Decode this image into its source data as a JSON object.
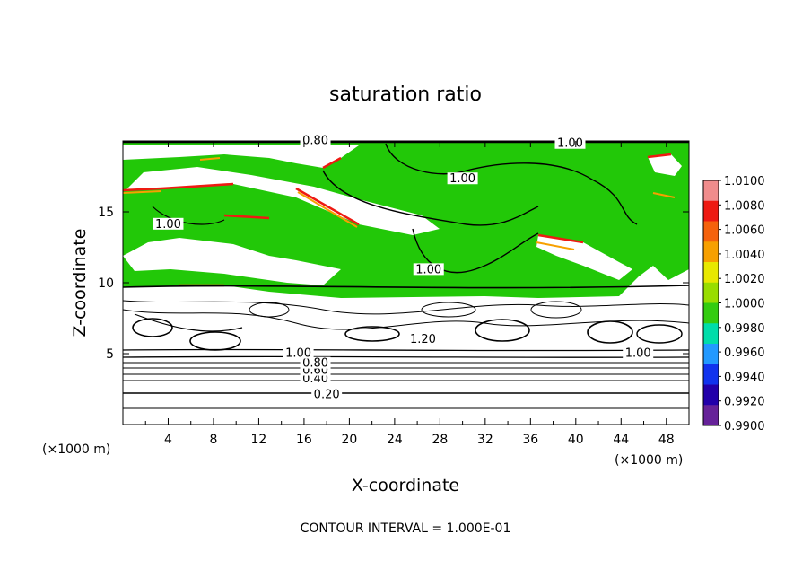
{
  "chart_data": {
    "type": "heatmap",
    "title": "saturation ratio",
    "xlabel": "X-coordinate",
    "ylabel": "Z-coordinate",
    "x_unit": "(×1000 m)",
    "z_unit": "(×1000 m)",
    "xlim": [
      0,
      50
    ],
    "ylim": [
      0,
      20
    ],
    "x_ticks": [
      4,
      8,
      12,
      16,
      20,
      24,
      28,
      32,
      36,
      40,
      44,
      48
    ],
    "y_ticks": [
      5,
      10,
      15
    ],
    "footer": "CONTOUR INTERVAL = 1.000E-01",
    "colorbar": {
      "levels": [
        "1.0100",
        "1.0080",
        "1.0060",
        "1.0040",
        "1.0020",
        "1.0000",
        "0.9980",
        "0.9960",
        "0.9940",
        "0.9920",
        "0.9900"
      ],
      "colors": [
        "#f08c8c",
        "#ee1a12",
        "#f5620c",
        "#f7a000",
        "#e8e800",
        "#99dd00",
        "#33cc10",
        "#00ddaa",
        "#2299ff",
        "#1133ee",
        "#2200aa",
        "#662299"
      ]
    },
    "contour_labels": [
      {
        "text": "0.20",
        "x": 18.0,
        "z": 2.0
      },
      {
        "text": "0.40",
        "x": 17.0,
        "z": 3.1
      },
      {
        "text": "0.60",
        "x": 17.0,
        "z": 3.7
      },
      {
        "text": "0.80",
        "x": 17.0,
        "z": 4.2
      },
      {
        "text": "1.00",
        "x": 15.5,
        "z": 4.9
      },
      {
        "text": "1.20",
        "x": 26.5,
        "z": 5.9
      },
      {
        "text": "1.00",
        "x": 45.5,
        "z": 4.9
      },
      {
        "text": "1.00",
        "x": 4.0,
        "z": 14.0
      },
      {
        "text": "1.00",
        "x": 27.0,
        "z": 10.8
      },
      {
        "text": "1.00",
        "x": 30.0,
        "z": 17.2
      },
      {
        "text": "1.00",
        "x": 39.5,
        "z": 19.7
      },
      {
        "text": "0.80",
        "x": 17.0,
        "z": 19.9
      }
    ]
  }
}
